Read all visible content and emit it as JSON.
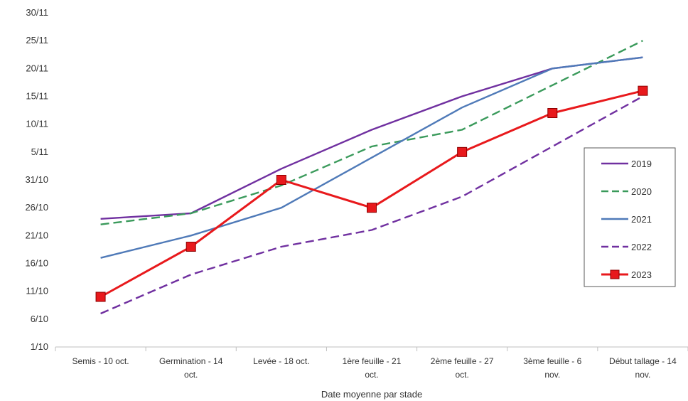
{
  "chart_data": {
    "type": "line",
    "xlabel": "Date moyenne par stade",
    "ylabel": "",
    "categories": [
      [
        "Semis - 10 oct."
      ],
      [
        "Germination - 14",
        "oct."
      ],
      [
        "Levée - 18 oct."
      ],
      [
        "1ère feuille - 21",
        "oct."
      ],
      [
        "2ème feuille - 27",
        "oct."
      ],
      [
        "3ème feuille - 6",
        "nov."
      ],
      [
        "Début tallage - 14",
        "nov."
      ]
    ],
    "y_ticks": [
      "1/10",
      "6/10",
      "11/10",
      "16/10",
      "21/10",
      "26/10",
      "31/10",
      "5/11",
      "10/11",
      "15/11",
      "20/11",
      "25/11",
      "30/11"
    ],
    "ylim": [
      "1/10",
      "30/11"
    ],
    "grid": "vertical category separators only",
    "legend_position": "right",
    "series": [
      {
        "name": "2019",
        "color": "#7030a0",
        "style": "solid",
        "marker": "none",
        "values": [
          "24/10",
          "25/10",
          "2/11",
          "9/11",
          "15/11",
          "20/11",
          "22/11"
        ]
      },
      {
        "name": "2020",
        "color": "#3a9a5b",
        "style": "dashed",
        "marker": "none",
        "values": [
          "23/10",
          "25/10",
          "30/10",
          "6/11",
          "9/11",
          "17/11",
          "25/11"
        ]
      },
      {
        "name": "2021",
        "color": "#4f7ab8",
        "style": "solid",
        "marker": "none",
        "values": [
          "17/10",
          "21/10",
          "26/10",
          "4/11",
          "13/11",
          "20/11",
          "22/11"
        ]
      },
      {
        "name": "2022",
        "color": "#7030a0",
        "style": "dashed",
        "marker": "none",
        "values": [
          "7/10",
          "14/10",
          "19/10",
          "22/10",
          "28/10",
          "6/11",
          "15/11"
        ]
      },
      {
        "name": "2023",
        "color": "#e8191c",
        "style": "solid",
        "marker": "square",
        "values": [
          "10/10",
          "19/10",
          "31/10",
          "26/10",
          "5/11",
          "12/11",
          "16/11"
        ]
      }
    ]
  }
}
